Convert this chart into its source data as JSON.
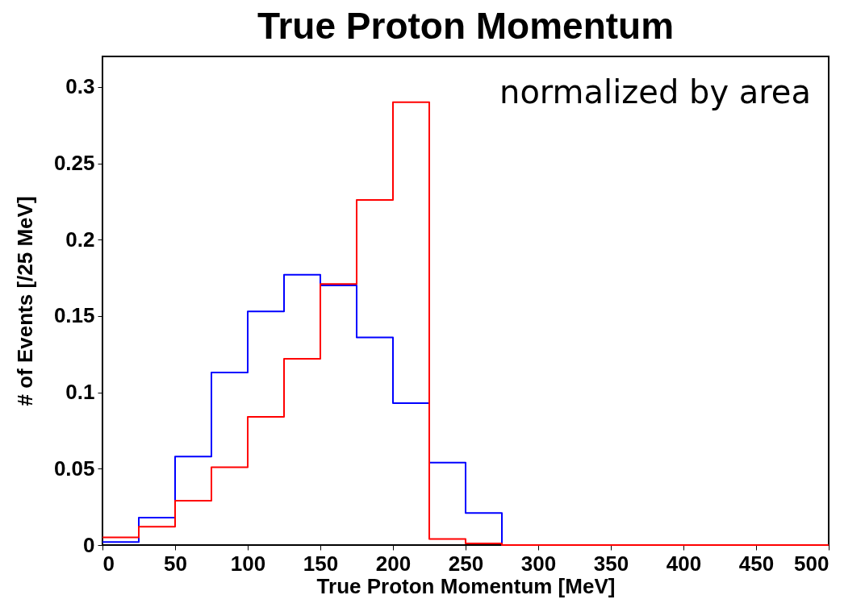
{
  "chart_data": {
    "type": "histogram",
    "title": "True Proton Momentum",
    "xlabel": "True Proton Momentum [MeV]",
    "ylabel": "# of Events [/25 MeV]",
    "annotations": [
      "normalized by area"
    ],
    "bins": [
      0,
      25,
      50,
      75,
      100,
      125,
      150,
      175,
      200,
      225,
      250,
      275,
      300,
      325,
      350,
      375,
      400,
      425,
      450,
      475,
      500
    ],
    "series": [
      {
        "color": "#0000ff",
        "values": [
          0.002,
          0.018,
          0.058,
          0.113,
          0.153,
          0.177,
          0.17,
          0.136,
          0.093,
          0.054,
          0.021,
          0,
          0,
          0,
          0,
          0,
          0,
          0,
          0,
          0
        ]
      },
      {
        "color": "#ff0000",
        "values": [
          0.005,
          0.012,
          0.029,
          0.051,
          0.084,
          0.122,
          0.171,
          0.226,
          0.29,
          0.004,
          0.001,
          0,
          0,
          0,
          0,
          0,
          0,
          0,
          0,
          0
        ]
      }
    ],
    "xlim": [
      0,
      500
    ],
    "xticks": [
      0,
      50,
      100,
      150,
      200,
      250,
      300,
      350,
      400,
      450,
      500
    ],
    "ylim": [
      0,
      0.32
    ],
    "yticks": [
      0,
      0.05,
      0.1,
      0.15,
      0.2,
      0.25,
      0.3
    ],
    "grid": false,
    "legend": false
  }
}
